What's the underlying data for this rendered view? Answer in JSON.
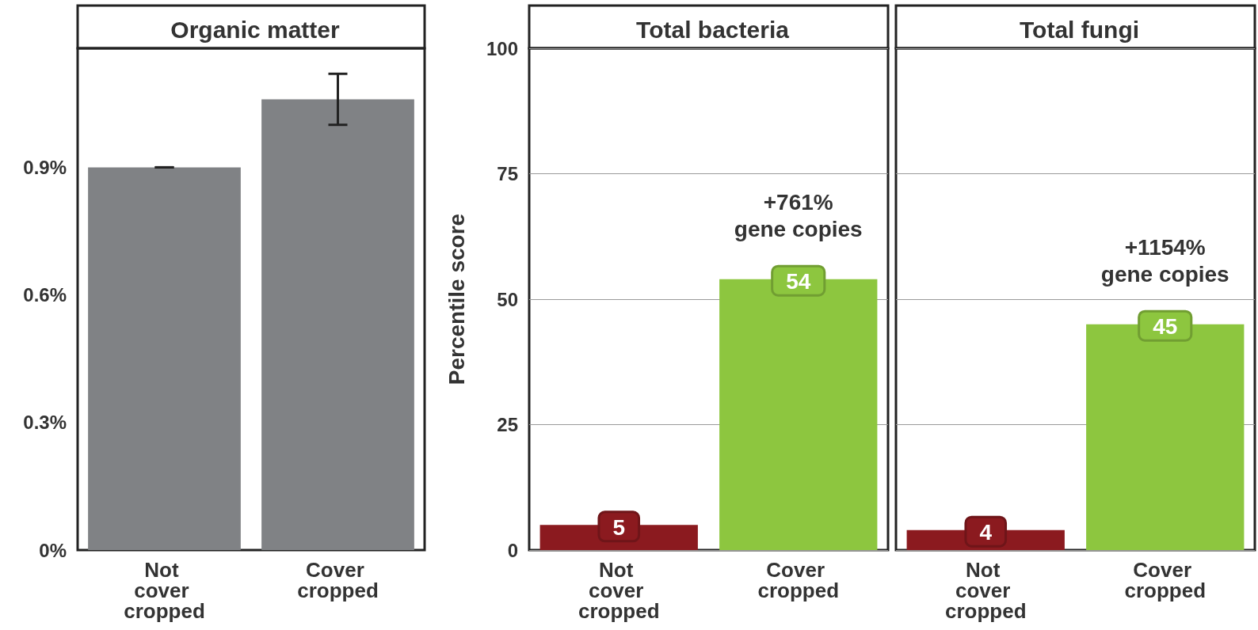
{
  "chart_data": [
    {
      "type": "bar",
      "title": "Organic matter",
      "categories": [
        "Not cover cropped",
        "Cover cropped"
      ],
      "values": [
        0.9,
        1.06
      ],
      "errors": [
        0,
        [
          1.0,
          1.12
        ]
      ],
      "colors": [
        "#808285",
        "#808285"
      ],
      "ylim": [
        0,
        1.18
      ],
      "yticks": [
        {
          "value": 0,
          "label": "0%"
        },
        {
          "value": 0.3,
          "label": "0.3%"
        },
        {
          "value": 0.6,
          "label": "0.6%"
        },
        {
          "value": 0.9,
          "label": "0.9%"
        }
      ],
      "grid": false
    },
    {
      "type": "bar",
      "title": "Total bacteria",
      "ylabel": "Percentile score",
      "categories": [
        "Not cover cropped",
        "Cover cropped"
      ],
      "values": [
        5,
        54
      ],
      "colors": [
        "#8b1a1f",
        "#8dc63f"
      ],
      "data_labels": true,
      "ylim": [
        0,
        100
      ],
      "yticks": [
        0,
        25,
        50,
        75,
        100
      ],
      "grid": "y",
      "annotations": [
        "+761%\ngene copies"
      ]
    },
    {
      "type": "bar",
      "title": "Total fungi",
      "categories": [
        "Not cover cropped",
        "Cover cropped"
      ],
      "values": [
        4,
        45
      ],
      "colors": [
        "#8b1a1f",
        "#8dc63f"
      ],
      "data_labels": true,
      "ylim": [
        0,
        100
      ],
      "yticks": [
        0,
        25,
        50,
        75,
        100
      ],
      "grid": "y",
      "tick_labels": "x",
      "annotations": [
        "+1154%\ngene copies"
      ]
    }
  ]
}
